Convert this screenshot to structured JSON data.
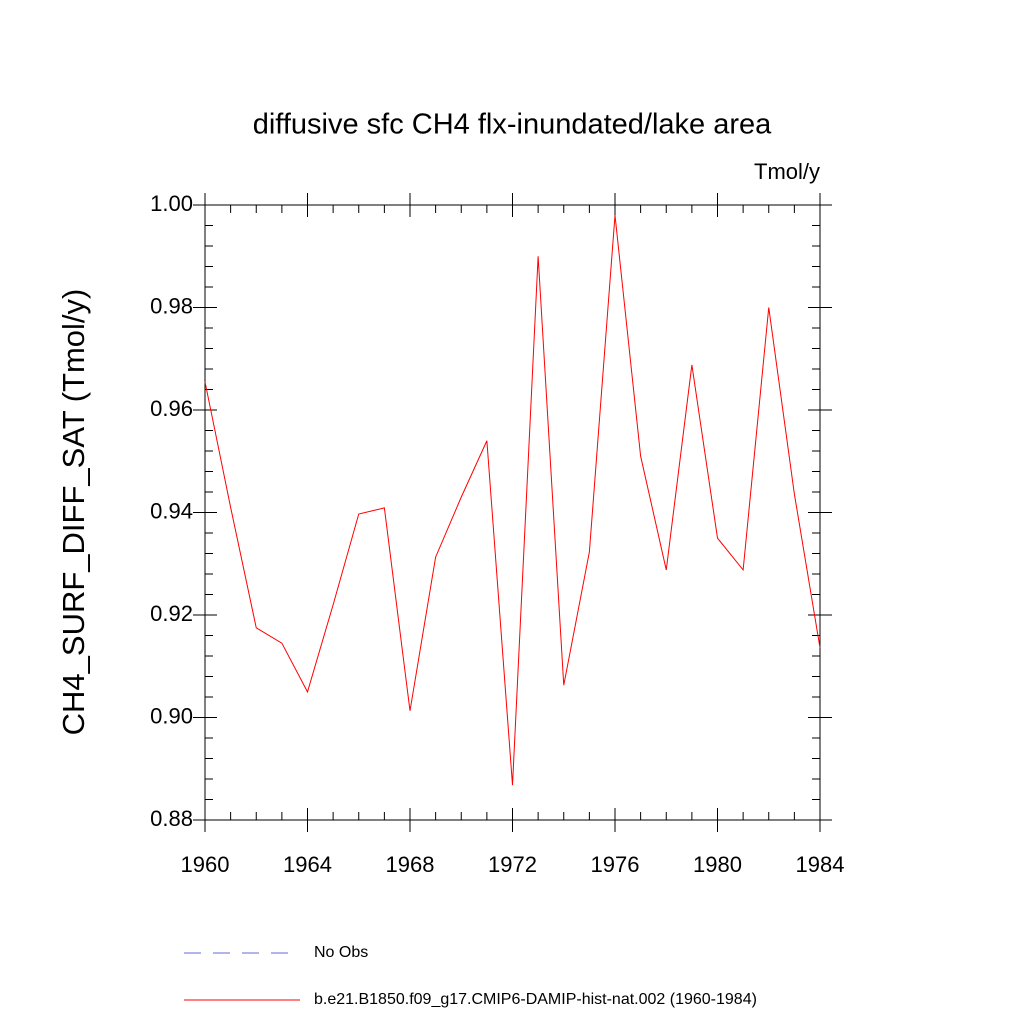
{
  "chart_data": {
    "type": "line",
    "title": "diffusive sfc CH4 flx-inundated/lake area",
    "units": "Tmol/y",
    "y_label": "CH4_SURF_DIFF_SAT  (Tmol/y)",
    "x": [
      1960,
      1961,
      1962,
      1963,
      1964,
      1965,
      1966,
      1967,
      1968,
      1969,
      1970,
      1971,
      1972,
      1973,
      1974,
      1975,
      1976,
      1977,
      1978,
      1979,
      1980,
      1981,
      1982,
      1983,
      1984
    ],
    "series": [
      {
        "name": "b.e21.B1850.f09_g17.CMIP6-DAMIP-hist-nat.002 (1960-1984)",
        "color": "#ff0000",
        "values": [
          0.9655,
          0.941,
          0.9175,
          0.9145,
          0.905,
          0.922,
          0.9397,
          0.9409,
          0.9013,
          0.9313,
          0.943,
          0.954,
          0.8868,
          0.99,
          0.9063,
          0.9323,
          0.998,
          0.951,
          0.9288,
          0.9688,
          0.935,
          0.9288,
          0.98,
          0.9436,
          0.9136
        ]
      }
    ],
    "reference": {
      "name": "No Obs",
      "color": "#6a6ad8",
      "style": "dashed"
    },
    "xlim": [
      1960,
      1984
    ],
    "xticks": [
      1960,
      1964,
      1968,
      1972,
      1976,
      1980,
      1984
    ],
    "ylim": [
      0.88,
      1.0
    ],
    "yticks": [
      0.88,
      {
        "value": 0.9,
        "label": "0.90"
      },
      0.92,
      0.94,
      0.96,
      0.98,
      {
        "value": 1.0,
        "label": "1.00"
      }
    ]
  }
}
